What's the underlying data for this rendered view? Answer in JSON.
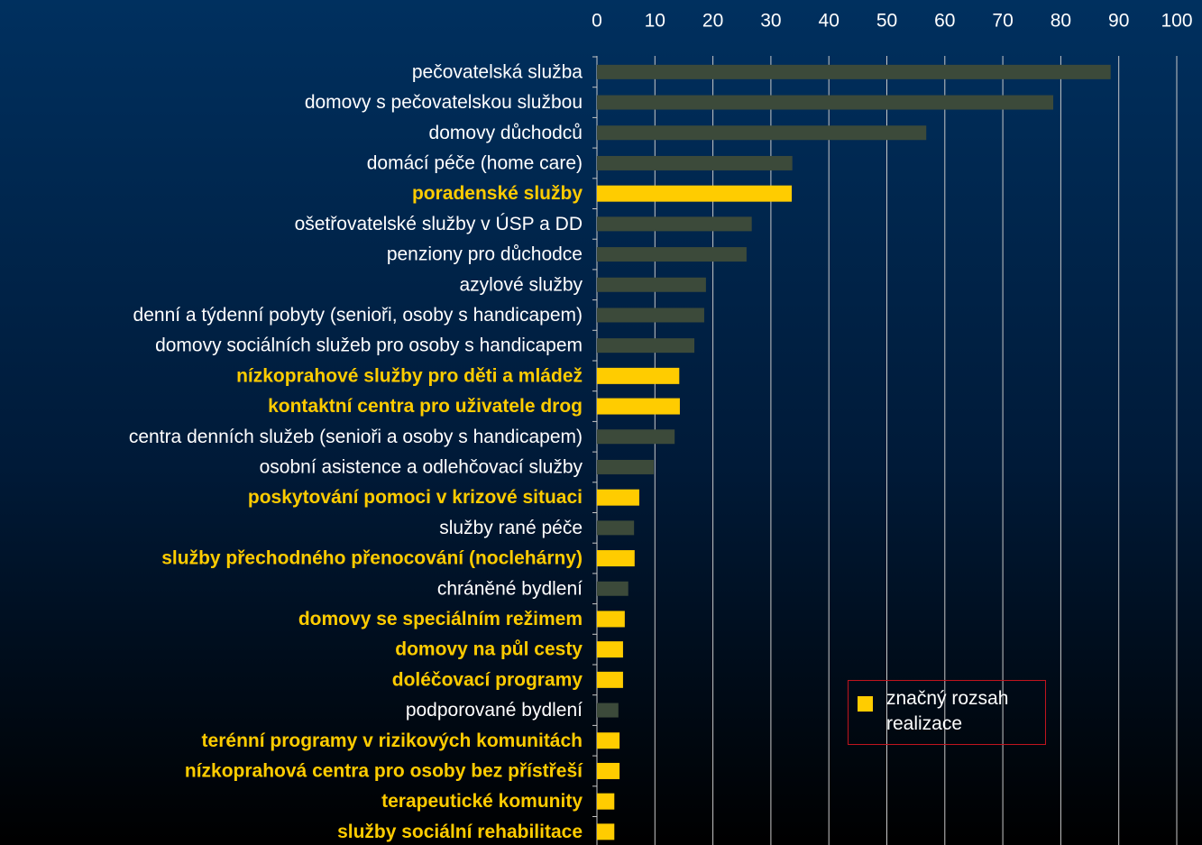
{
  "chart_data": {
    "type": "barh",
    "categories": [
      "pečovatelská služba",
      "domovy s pečovatelskou službou",
      "domovy důchodců",
      "domácí péče (home care)",
      "poradenské služby",
      "ošetřovatelské služby v ÚSP a DD",
      "penziony pro důchodce",
      "azylové služby",
      "denní a týdenní pobyty (senioři, osoby s handicapem)",
      "domovy sociálních služeb pro osoby s handicapem",
      "nízkoprahové služby pro děti a mládež",
      "kontaktní centra pro uživatele drog",
      "centra denních služeb (senioři a osoby s handicapem)",
      "osobní asistence a odlehčovací služby",
      "poskytování pomoci v krizové situaci",
      "služby rané péče",
      "služby přechodného přenocování (noclehárny)",
      "chráněné bydlení",
      "domovy se speciálním režimem",
      "domovy na půl cesty",
      "doléčovací programy",
      "podporované bydlení",
      "terénní programy v rizikových komunitách",
      "nízkoprahová centra pro osoby bez přístřeší",
      "terapeutické komunity",
      "služby sociální rehabilitace"
    ],
    "values": [
      88.6,
      78.7,
      56.8,
      33.7,
      33.6,
      26.7,
      25.8,
      18.8,
      18.5,
      16.8,
      14.2,
      14.3,
      13.4,
      9.8,
      7.3,
      6.4,
      6.5,
      5.4,
      4.8,
      4.5,
      4.5,
      3.7,
      3.9,
      3.9,
      3.0,
      3.0
    ],
    "colors": [
      "#3c4a3a",
      "#3c4a3a",
      "#3c4a3a",
      "#3c4a3a",
      "#ffcc00",
      "#3c4a3a",
      "#3c4a3a",
      "#3c4a3a",
      "#3c4a3a",
      "#3c4a3a",
      "#ffcc00",
      "#ffcc00",
      "#3c4a3a",
      "#3c4a3a",
      "#ffcc00",
      "#3c4a3a",
      "#ffcc00",
      "#3c4a3a",
      "#ffcc00",
      "#ffcc00",
      "#ffcc00",
      "#3c4a3a",
      "#ffcc00",
      "#ffcc00",
      "#ffcc00",
      "#ffcc00"
    ],
    "highlight_color": "#ffcc00",
    "legend": {
      "label": "značný rozsah realizace",
      "color": "#ffcc00"
    },
    "xlim": [
      0,
      100
    ],
    "xticks": [
      0,
      10,
      20,
      30,
      40,
      50,
      60,
      70,
      80,
      90,
      100
    ],
    "grid": true
  }
}
